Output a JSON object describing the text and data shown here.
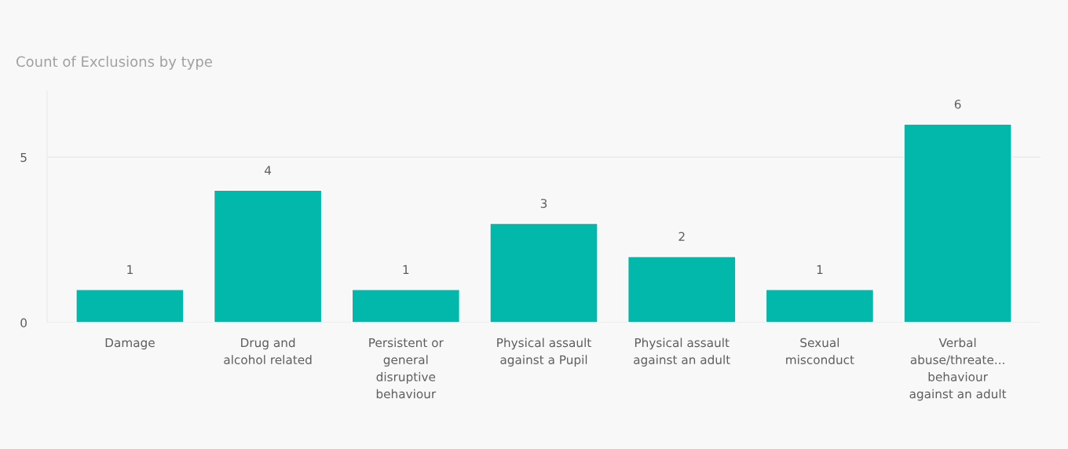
{
  "chart_data": {
    "type": "bar",
    "title": "Count of Exclusions by type",
    "categories": [
      "Damage",
      "Drug and\nalcohol related",
      "Persistent or\ngeneral\ndisruptive\nbehaviour",
      "Physical assault\nagainst a Pupil",
      "Physical assault\nagainst an adult",
      "Sexual\nmisconduct",
      "Verbal\nabuse/threate...\nbehaviour\nagainst an adult"
    ],
    "values": [
      1,
      4,
      1,
      3,
      2,
      1,
      6
    ],
    "color": "#01b8aa",
    "ylim": [
      0,
      7
    ],
    "yticks": [
      0,
      5
    ],
    "grid": "y",
    "data_labels": true
  }
}
